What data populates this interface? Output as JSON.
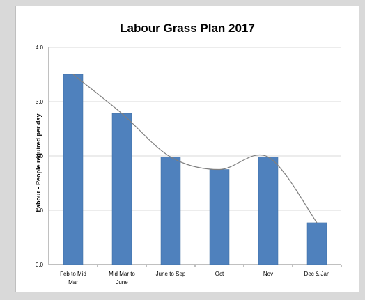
{
  "chart_data": {
    "type": "bar",
    "title": "Labour Grass Plan 2017",
    "xlabel": "",
    "ylabel": "Labour - People required per day",
    "ylim": [
      0,
      4
    ],
    "y_ticks": [
      "0.0",
      "1.0",
      "2.0",
      "3.0",
      "4.0"
    ],
    "y_tick_values": [
      0,
      1,
      2,
      3,
      4
    ],
    "grid": true,
    "legend": "none",
    "categories": [
      [
        "Feb to Mid",
        "Mar"
      ],
      [
        "Mid Mar to",
        "June"
      ],
      [
        "June to Sep"
      ],
      [
        "Oct"
      ],
      [
        "Nov"
      ],
      [
        "Dec & Jan"
      ]
    ],
    "values": [
      3.5,
      2.78,
      1.98,
      1.75,
      1.98,
      0.77
    ],
    "trendline": "smooth",
    "colors": {
      "bar": "#4f81bd",
      "bar_edge": "#3b6aa0",
      "trend": "#7f7f7f",
      "grid": "#d9d9d9",
      "axis": "#808080"
    }
  }
}
